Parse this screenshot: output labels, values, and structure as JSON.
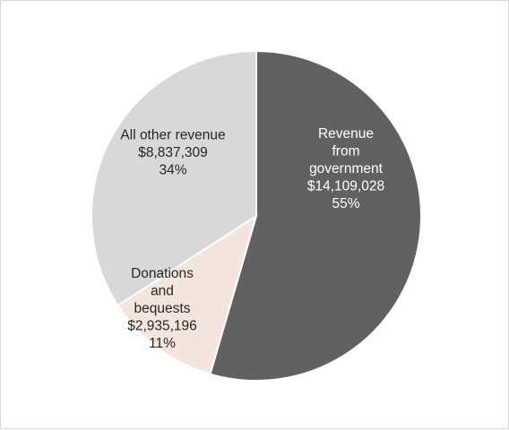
{
  "chart_data": {
    "type": "pie",
    "title": "",
    "slices": [
      {
        "label_lines": [
          "Revenue",
          "from",
          "government"
        ],
        "value": 14109028,
        "value_label": "$14,109,028",
        "percent_label": "55%",
        "color": "#616161",
        "text_color": "#ffffff"
      },
      {
        "label_lines": [
          "Donations",
          "and",
          "bequests"
        ],
        "value": 2935196,
        "value_label": "$2,935,196",
        "percent_label": "11%",
        "color": "#f4e4de",
        "text_color": "#262626"
      },
      {
        "label_lines": [
          "All other revenue"
        ],
        "value": 8837309,
        "value_label": "$8,837,309",
        "percent_label": "34%",
        "color": "#d8d8d8",
        "text_color": "#262626"
      }
    ],
    "start_angle_deg": 0,
    "direction": "clockwise",
    "legend": "none"
  }
}
